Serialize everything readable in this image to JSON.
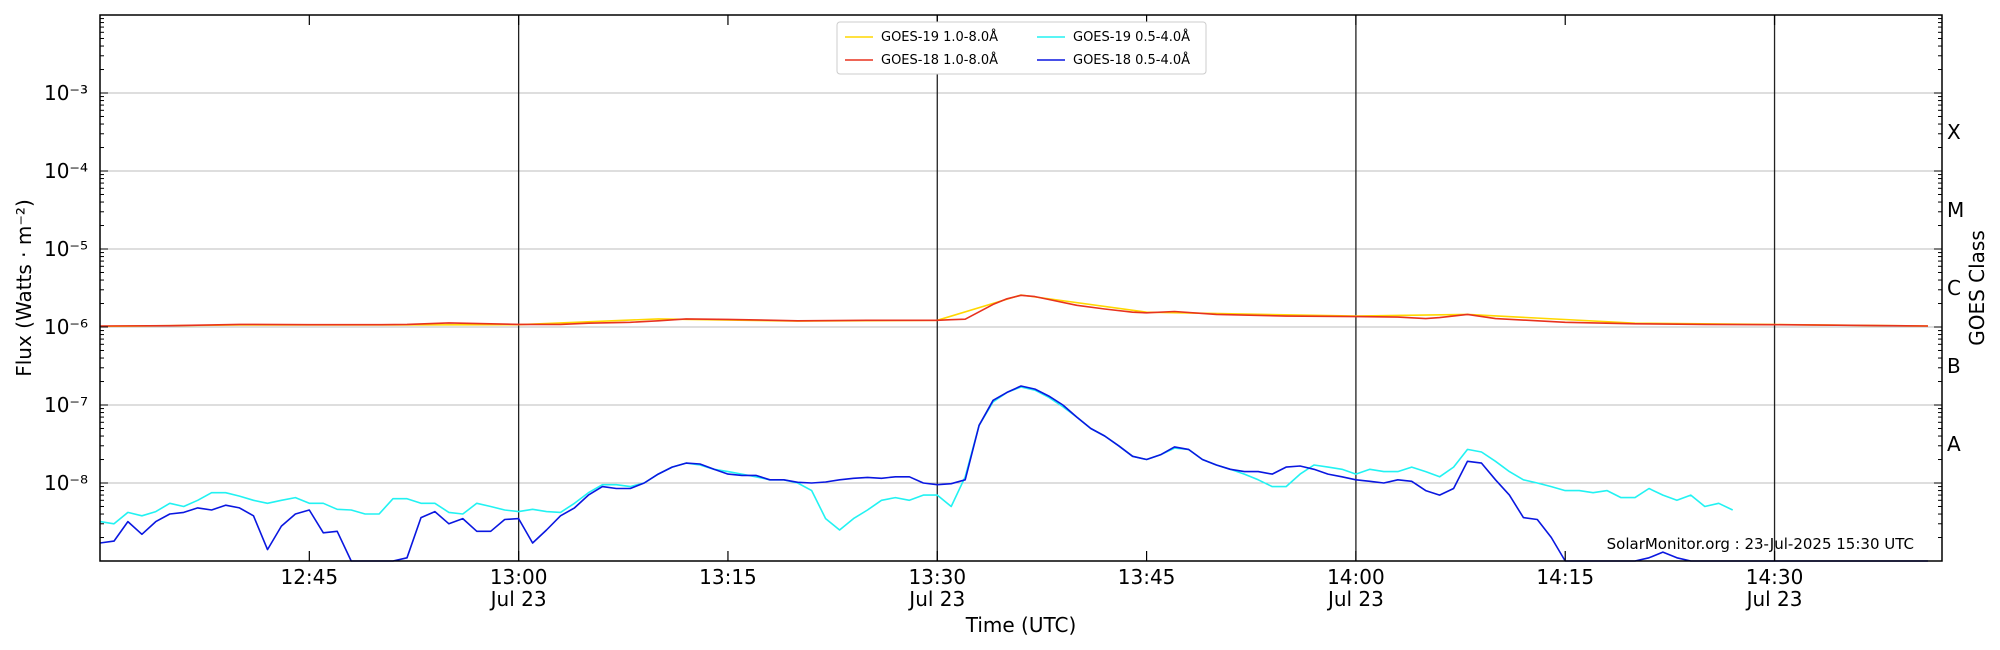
{
  "chart_data": {
    "type": "line",
    "title": "",
    "xlabel": "Time (UTC)",
    "ylabel": "Flux (Watts · m⁻²)",
    "ylabel_right": "GOES Class",
    "y_scale": "log",
    "ylim": [
      1e-09,
      0.01
    ],
    "xlim_minutes": [
      "12:30",
      "14:42"
    ],
    "grid": "horizontal at decades, vertical black lines at half hours",
    "legend_position": "top-center",
    "credit": "SolarMonitor.org : 23-Jul-2025 15:30 UTC",
    "y_ticks": [
      {
        "value": 0.001,
        "label": "10⁻³"
      },
      {
        "value": 0.0001,
        "label": "10⁻⁴"
      },
      {
        "value": 1e-05,
        "label": "10⁻⁵"
      },
      {
        "value": 1e-06,
        "label": "10⁻⁶"
      },
      {
        "value": 1e-07,
        "label": "10⁻⁷"
      },
      {
        "value": 1e-08,
        "label": "10⁻⁸"
      }
    ],
    "class_labels": [
      {
        "label": "X",
        "value": 0.000316
      },
      {
        "label": "M",
        "value": 3.16e-05
      },
      {
        "label": "C",
        "value": 3.16e-06
      },
      {
        "label": "B",
        "value": 3.16e-07
      },
      {
        "label": "A",
        "value": 3.16e-08
      }
    ],
    "x_ticks": [
      {
        "time": "12:45",
        "label": "12:45",
        "sublabel": ""
      },
      {
        "time": "13:00",
        "label": "13:00",
        "sublabel": "Jul 23"
      },
      {
        "time": "13:15",
        "label": "13:15",
        "sublabel": ""
      },
      {
        "time": "13:30",
        "label": "13:30",
        "sublabel": "Jul 23"
      },
      {
        "time": "13:45",
        "label": "13:45",
        "sublabel": ""
      },
      {
        "time": "14:00",
        "label": "14:00",
        "sublabel": "Jul 23"
      },
      {
        "time": "14:15",
        "label": "14:15",
        "sublabel": ""
      },
      {
        "time": "14:30",
        "label": "14:30",
        "sublabel": "Jul 23"
      }
    ],
    "series": [
      {
        "name": "GOES-19 1.0-8.0Å",
        "color": "#ffd700",
        "x": [
          "12:30",
          "12:40",
          "12:50",
          "13:00",
          "13:10",
          "13:20",
          "13:30",
          "13:36",
          "13:45",
          "14:00",
          "14:08",
          "14:20",
          "14:41"
        ],
        "values": [
          1.02e-06,
          1.06e-06,
          1.06e-06,
          1.07e-06,
          1.27e-06,
          1.19e-06,
          1.22e-06,
          2.57e-06,
          1.55e-06,
          1.38e-06,
          1.45e-06,
          1.12e-06,
          1.03e-06
        ]
      },
      {
        "name": "GOES-18 1.0-8.0Å",
        "color": "#e8321e",
        "x": [
          "12:30",
          "12:35",
          "12:40",
          "12:45",
          "12:50",
          "12:52",
          "12:55",
          "13:00",
          "13:03",
          "13:05",
          "13:08",
          "13:10",
          "13:12",
          "13:15",
          "13:20",
          "13:25",
          "13:30",
          "13:31",
          "13:32",
          "13:34",
          "13:35",
          "13:36",
          "13:37",
          "13:38",
          "13:40",
          "13:42",
          "13:44",
          "13:45",
          "13:47",
          "13:50",
          "13:55",
          "14:00",
          "14:03",
          "14:05",
          "14:06",
          "14:08",
          "14:10",
          "14:15",
          "14:20",
          "14:25",
          "14:30",
          "14:41"
        ],
        "values": [
          1.03e-06,
          1.04e-06,
          1.08e-06,
          1.07e-06,
          1.07e-06,
          1.08e-06,
          1.13e-06,
          1.08e-06,
          1.08e-06,
          1.12e-06,
          1.15e-06,
          1.2e-06,
          1.27e-06,
          1.25e-06,
          1.2e-06,
          1.22e-06,
          1.22e-06,
          1.24e-06,
          1.26e-06,
          1.95e-06,
          2.3e-06,
          2.55e-06,
          2.45e-06,
          2.25e-06,
          1.9e-06,
          1.7e-06,
          1.55e-06,
          1.52e-06,
          1.58e-06,
          1.45e-06,
          1.38e-06,
          1.36e-06,
          1.34e-06,
          1.28e-06,
          1.32e-06,
          1.45e-06,
          1.28e-06,
          1.15e-06,
          1.1e-06,
          1.08e-06,
          1.07e-06,
          1.03e-06
        ]
      },
      {
        "name": "GOES-19 0.5-4.0Å",
        "color": "#22f2f2",
        "x": [
          "12:30",
          "12:31",
          "12:32",
          "12:33",
          "12:34",
          "12:35",
          "12:36",
          "12:37",
          "12:38",
          "12:39",
          "12:40",
          "12:41",
          "12:42",
          "12:43",
          "12:44",
          "12:45",
          "12:46",
          "12:47",
          "12:48",
          "12:49",
          "12:50",
          "12:51",
          "12:52",
          "12:53",
          "12:54",
          "12:55",
          "12:56",
          "12:57",
          "12:58",
          "12:59",
          "13:00",
          "13:01",
          "13:02",
          "13:03",
          "13:04",
          "13:05",
          "13:06",
          "13:07",
          "13:08",
          "13:09",
          "13:10",
          "13:11",
          "13:12",
          "13:13",
          "13:14",
          "13:15",
          "13:16",
          "13:17",
          "13:18",
          "13:19",
          "13:20",
          "13:21",
          "13:22",
          "13:23",
          "13:24",
          "13:25",
          "13:26",
          "13:27",
          "13:28",
          "13:29",
          "13:30",
          "13:31",
          "13:32",
          "13:33",
          "13:34",
          "13:35",
          "13:36",
          "13:37",
          "13:38",
          "13:39",
          "13:40",
          "13:41",
          "13:42",
          "13:43",
          "13:44",
          "13:45",
          "13:46",
          "13:47",
          "13:48",
          "13:49",
          "13:50",
          "13:51",
          "13:52",
          "13:53",
          "13:54",
          "13:55",
          "13:56",
          "13:57",
          "13:58",
          "13:59",
          "14:00",
          "14:01",
          "14:02",
          "14:03",
          "14:04",
          "14:05",
          "14:06",
          "14:07",
          "14:08",
          "14:09",
          "14:10",
          "14:11",
          "14:12",
          "14:13",
          "14:14",
          "14:15",
          "14:16",
          "14:17",
          "14:18",
          "14:19",
          "14:20",
          "14:21",
          "14:22",
          "14:23",
          "14:24",
          "14:25",
          "14:26",
          "14:27"
        ],
        "values": [
          3.2e-09,
          3e-09,
          4.2e-09,
          3.8e-09,
          4.3e-09,
          5.5e-09,
          5e-09,
          6e-09,
          7.5e-09,
          7.5e-09,
          6.8e-09,
          6e-09,
          5.5e-09,
          6e-09,
          6.5e-09,
          5.5e-09,
          5.5e-09,
          4.6e-09,
          4.5e-09,
          4e-09,
          4e-09,
          6.3e-09,
          6.3e-09,
          5.5e-09,
          5.5e-09,
          4.2e-09,
          4e-09,
          5.5e-09,
          5e-09,
          4.5e-09,
          4.3e-09,
          4.6e-09,
          4.3e-09,
          4.2e-09,
          5.5e-09,
          7.5e-09,
          9.5e-09,
          9.5e-09,
          9e-09,
          1e-08,
          1.3e-08,
          1.6e-08,
          1.8e-08,
          1.7e-08,
          1.5e-08,
          1.4e-08,
          1.3e-08,
          1.2e-08,
          1.1e-08,
          1.1e-08,
          1e-08,
          8e-09,
          3.5e-09,
          2.5e-09,
          3.5e-09,
          4.5e-09,
          6e-09,
          6.5e-09,
          6e-09,
          7e-09,
          7e-09,
          5e-09,
          1.2e-08,
          5.5e-08,
          1.1e-07,
          1.45e-07,
          1.7e-07,
          1.55e-07,
          1.25e-07,
          9.5e-08,
          7e-08,
          5e-08,
          4e-08,
          3e-08,
          2.2e-08,
          2e-08,
          2.3e-08,
          2.8e-08,
          2.7e-08,
          2e-08,
          1.7e-08,
          1.5e-08,
          1.3e-08,
          1.1e-08,
          9e-09,
          9e-09,
          1.3e-08,
          1.7e-08,
          1.6e-08,
          1.5e-08,
          1.3e-08,
          1.5e-08,
          1.4e-08,
          1.4e-08,
          1.6e-08,
          1.4e-08,
          1.2e-08,
          1.6e-08,
          2.7e-08,
          2.5e-08,
          1.9e-08,
          1.4e-08,
          1.1e-08,
          1e-08,
          9e-09,
          8e-09,
          8e-09,
          7.5e-09,
          8e-09,
          6.5e-09,
          6.5e-09,
          8.5e-09,
          7e-09,
          6e-09,
          7e-09,
          5e-09,
          5.5e-09,
          4.5e-09
        ]
      },
      {
        "name": "GOES-18 0.5-4.0Å",
        "color": "#0a17e0",
        "x": [
          "12:30",
          "12:31",
          "12:32",
          "12:33",
          "12:34",
          "12:35",
          "12:36",
          "12:37",
          "12:38",
          "12:39",
          "12:40",
          "12:41",
          "12:42",
          "12:43",
          "12:44",
          "12:45",
          "12:46",
          "12:47",
          "12:48",
          "12:49",
          "12:50",
          "12:51",
          "12:52",
          "12:53",
          "12:54",
          "12:55",
          "12:56",
          "12:57",
          "12:58",
          "12:59",
          "13:00",
          "13:01",
          "13:02",
          "13:03",
          "13:04",
          "13:05",
          "13:06",
          "13:07",
          "13:08",
          "13:09",
          "13:10",
          "13:11",
          "13:12",
          "13:13",
          "13:14",
          "13:15",
          "13:16",
          "13:17",
          "13:18",
          "13:19",
          "13:20",
          "13:21",
          "13:22",
          "13:23",
          "13:24",
          "13:25",
          "13:26",
          "13:27",
          "13:28",
          "13:29",
          "13:30",
          "13:31",
          "13:32",
          "13:33",
          "13:34",
          "13:35",
          "13:36",
          "13:37",
          "13:38",
          "13:39",
          "13:40",
          "13:41",
          "13:42",
          "13:43",
          "13:44",
          "13:45",
          "13:46",
          "13:47",
          "13:48",
          "13:49",
          "13:50",
          "13:51",
          "13:52",
          "13:53",
          "13:54",
          "13:55",
          "13:56",
          "13:57",
          "13:58",
          "13:59",
          "14:00",
          "14:01",
          "14:02",
          "14:03",
          "14:04",
          "14:05",
          "14:06",
          "14:07",
          "14:08",
          "14:09",
          "14:10",
          "14:11",
          "14:12",
          "14:13",
          "14:14",
          "14:15",
          "14:16",
          "14:17",
          "14:18",
          "14:19",
          "14:20",
          "14:21",
          "14:22",
          "14:23",
          "14:24",
          "14:25",
          "14:26",
          "14:27",
          "14:30",
          "14:35",
          "14:41"
        ],
        "values": [
          1.7e-09,
          1.8e-09,
          3.2e-09,
          2.2e-09,
          3.2e-09,
          4e-09,
          4.2e-09,
          4.8e-09,
          4.5e-09,
          5.2e-09,
          4.8e-09,
          3.8e-09,
          1.4e-09,
          2.8e-09,
          4e-09,
          4.5e-09,
          2.3e-09,
          2.4e-09,
          1e-09,
          1e-09,
          1e-09,
          1e-09,
          1.1e-09,
          3.6e-09,
          4.3e-09,
          3e-09,
          3.5e-09,
          2.4e-09,
          2.4e-09,
          3.4e-09,
          3.5e-09,
          1.7e-09,
          2.5e-09,
          3.8e-09,
          4.8e-09,
          7e-09,
          9e-09,
          8.5e-09,
          8.5e-09,
          1e-08,
          1.3e-08,
          1.6e-08,
          1.8e-08,
          1.75e-08,
          1.5e-08,
          1.3e-08,
          1.25e-08,
          1.25e-08,
          1.1e-08,
          1.1e-08,
          1.02e-08,
          1e-08,
          1.03e-08,
          1.1e-08,
          1.15e-08,
          1.18e-08,
          1.15e-08,
          1.2e-08,
          1.2e-08,
          1e-08,
          9.5e-09,
          9.8e-09,
          1.1e-08,
          5.5e-08,
          1.15e-07,
          1.45e-07,
          1.75e-07,
          1.6e-07,
          1.3e-07,
          1e-07,
          7e-08,
          5e-08,
          4e-08,
          3e-08,
          2.2e-08,
          2e-08,
          2.3e-08,
          2.9e-08,
          2.7e-08,
          2e-08,
          1.7e-08,
          1.5e-08,
          1.4e-08,
          1.4e-08,
          1.3e-08,
          1.6e-08,
          1.65e-08,
          1.5e-08,
          1.3e-08,
          1.2e-08,
          1.1e-08,
          1.05e-08,
          1e-08,
          1.1e-08,
          1.05e-08,
          8e-09,
          7e-09,
          8.5e-09,
          1.9e-08,
          1.8e-08,
          1.1e-08,
          7e-09,
          3.6e-09,
          3.4e-09,
          2e-09,
          1e-09,
          1e-09,
          1e-09,
          1e-09,
          1e-09,
          1e-09,
          1.1e-09,
          1.3e-09,
          1.1e-09,
          1e-09,
          1e-09,
          1e-09,
          1e-09,
          1e-09,
          1e-09,
          1e-09
        ]
      }
    ]
  }
}
